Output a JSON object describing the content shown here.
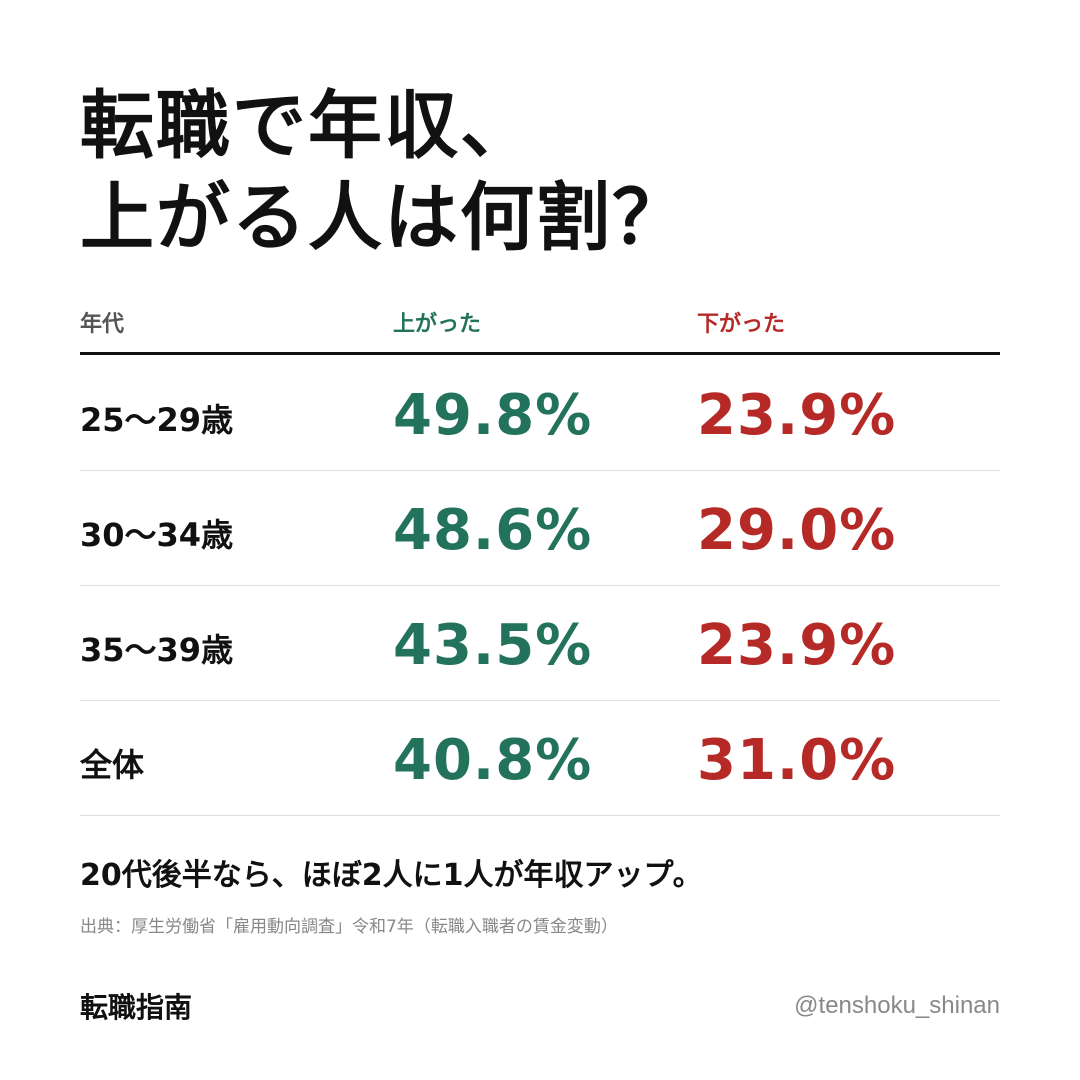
{
  "title_lines": [
    "転職で年収、",
    "上がる人は何割？"
  ],
  "colors": {
    "up": "#23725c",
    "down": "#b52a27",
    "text": "#111111",
    "muted": "#888888"
  },
  "chart_data": {
    "type": "table",
    "title": "転職で年収、上がる人は何割？",
    "columns": [
      "年代",
      "上がった",
      "下がった"
    ],
    "rows": [
      {
        "age": "25〜29歳",
        "up": "49.8%",
        "down": "23.9%"
      },
      {
        "age": "30〜34歳",
        "up": "48.6%",
        "down": "29.0%"
      },
      {
        "age": "35〜39歳",
        "up": "43.5%",
        "down": "23.9%"
      },
      {
        "age": "全体",
        "up": "40.8%",
        "down": "31.0%"
      }
    ]
  },
  "summary": "20代後半なら、ほぼ2人に1人が年収アップ。",
  "source": "出典：厚生労働省「雇用動向調査」令和7年（転職入職者の賃金変動）",
  "brand": "転職指南",
  "handle": "@tenshoku_shinan"
}
